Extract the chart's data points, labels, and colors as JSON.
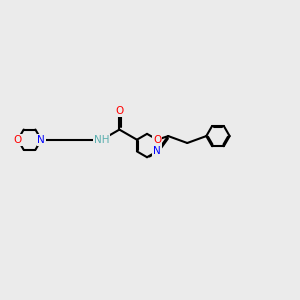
{
  "bg_color": "#ebebeb",
  "atom_colors": {
    "C": "#000000",
    "N": "#0000ff",
    "O": "#ff0000",
    "H": "#5aafaf"
  },
  "bond_color": "#000000",
  "bond_width": 1.5,
  "font_size_atom": 7.5,
  "figsize": [
    3.0,
    3.0
  ],
  "dpi": 100
}
